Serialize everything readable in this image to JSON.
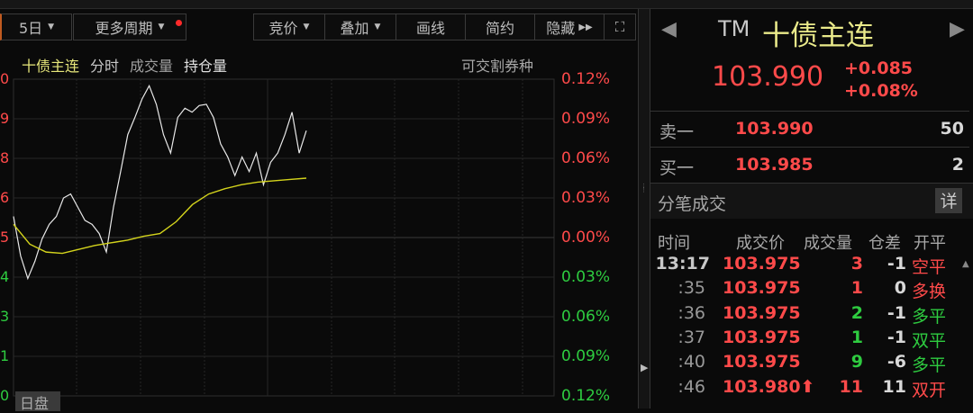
{
  "toolbar": {
    "period": "5日",
    "more_periods": "更多周期",
    "auction": "竞价",
    "overlay": "叠加",
    "draw": "画线",
    "simple": "简约",
    "hide": "隐藏"
  },
  "legend": {
    "name": "十债主连",
    "timeshare": "分时",
    "volume": "成交量",
    "open_interest": "持仓量",
    "deliverable": "可交割券种"
  },
  "left_axis_labels": [
    "0",
    "9",
    "8",
    "6",
    "5",
    "4",
    "3",
    "1",
    "0"
  ],
  "right_axis_labels": [
    "0.12%",
    "0.09%",
    "0.06%",
    "0.03%",
    "0.00%",
    "0.03%",
    "0.06%",
    "0.09%",
    "0.12%"
  ],
  "session_tag": "日盘",
  "chart_data": {
    "type": "line",
    "ylim": [
      -0.12,
      0.12
    ],
    "yunit": "%",
    "grid": true,
    "series": [
      {
        "role": "price",
        "color": "#e8e8e8",
        "values": [
          0.016,
          -0.014,
          -0.031,
          -0.018,
          -0.001,
          0.01,
          0.016,
          0.03,
          0.033,
          0.023,
          0.013,
          0.01,
          0.003,
          -0.011,
          0.023,
          0.05,
          0.078,
          0.091,
          0.105,
          0.115,
          0.101,
          0.078,
          0.064,
          0.091,
          0.098,
          0.095,
          0.1,
          0.101,
          0.091,
          0.071,
          0.061,
          0.047,
          0.061,
          0.05,
          0.064,
          0.04,
          0.057,
          0.064,
          0.078,
          0.095,
          0.064,
          0.081
        ]
      },
      {
        "role": "average",
        "color": "#d4d41c",
        "values": [
          0.01,
          -0.005,
          -0.011,
          -0.012,
          -0.009,
          -0.006,
          -0.004,
          -0.002,
          0.001,
          0.003,
          0.012,
          0.025,
          0.033,
          0.037,
          0.04,
          0.042,
          0.043,
          0.044,
          0.045
        ]
      }
    ]
  },
  "quote": {
    "code": "TM",
    "name": "十债主连",
    "price": "103.990",
    "change": "+0.085",
    "change_pct": "+0.08%"
  },
  "book": {
    "ask_label": "卖一",
    "ask_price": "103.990",
    "ask_vol": "50",
    "bid_label": "买一",
    "bid_price": "103.985",
    "bid_vol": "2"
  },
  "ticks": {
    "title": "分笔成交",
    "detail": "详",
    "headers": [
      "时间",
      "成交价",
      "成交量",
      "仓差",
      "开平"
    ],
    "rows": [
      {
        "time": "13:17",
        "price": "103.975",
        "vol": "3",
        "oi": "-1",
        "type": "空平",
        "vc": "red",
        "tc": "red"
      },
      {
        "time": ":35",
        "price": "103.975",
        "vol": "1",
        "oi": "0",
        "type": "多换",
        "vc": "red",
        "tc": "red"
      },
      {
        "time": ":36",
        "price": "103.975",
        "vol": "2",
        "oi": "-1",
        "type": "多平",
        "vc": "green",
        "tc": "green"
      },
      {
        "time": ":37",
        "price": "103.975",
        "vol": "1",
        "oi": "-1",
        "type": "双平",
        "vc": "green",
        "tc": "green"
      },
      {
        "time": ":40",
        "price": "103.975",
        "vol": "9",
        "oi": "-6",
        "type": "多平",
        "vc": "green",
        "tc": "green"
      },
      {
        "time": ":46",
        "price": "103.980⬆",
        "vol": "11",
        "oi": "11",
        "type": "双开",
        "vc": "red",
        "tc": "red"
      }
    ]
  }
}
